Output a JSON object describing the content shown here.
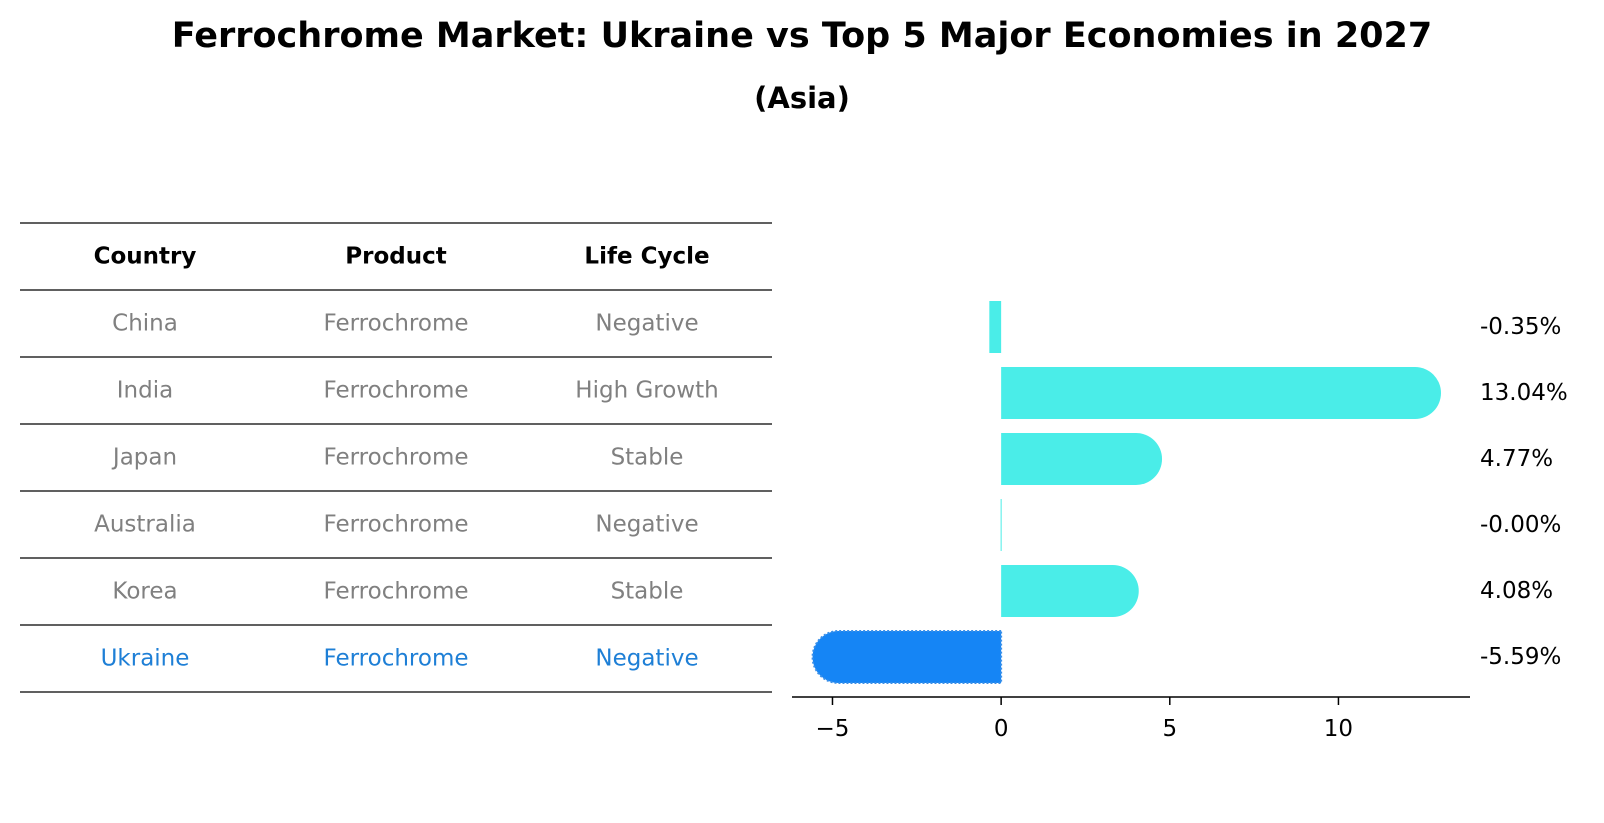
{
  "title": "Ferrochrome Market: Ukraine vs Top 5 Major Economies in 2027",
  "subtitle": "(Asia)",
  "colors": {
    "bar": "#4aede8",
    "highlight": "#1585f5",
    "text_gray": "#808080",
    "text_highlight": "#1e7fd6"
  },
  "table": {
    "headers": [
      "Country",
      "Product",
      "Life Cycle"
    ],
    "rows": [
      {
        "country": "China",
        "product": "Ferrochrome",
        "life_cycle": "Negative",
        "highlight": false
      },
      {
        "country": "India",
        "product": "Ferrochrome",
        "life_cycle": "High Growth",
        "highlight": false
      },
      {
        "country": "Japan",
        "product": "Ferrochrome",
        "life_cycle": "Stable",
        "highlight": false
      },
      {
        "country": "Australia",
        "product": "Ferrochrome",
        "life_cycle": "Negative",
        "highlight": false
      },
      {
        "country": "Korea",
        "product": "Ferrochrome",
        "life_cycle": "Stable",
        "highlight": false
      },
      {
        "country": "Ukraine",
        "product": "Ferrochrome",
        "life_cycle": "Negative",
        "highlight": true
      }
    ]
  },
  "chart_data": {
    "type": "bar",
    "orientation": "horizontal",
    "categories": [
      "China",
      "India",
      "Japan",
      "Australia",
      "Korea",
      "Ukraine"
    ],
    "values": [
      -0.35,
      13.04,
      4.77,
      -0.0,
      4.08,
      -5.59
    ],
    "value_labels": [
      "-0.35%",
      "13.04%",
      "4.77%",
      "-0.00%",
      "4.08%",
      "-5.59%"
    ],
    "highlight_category": "Ukraine",
    "xlim": [
      -6.2,
      13.9
    ],
    "xticks": [
      -5,
      0,
      5,
      10
    ],
    "xtick_labels": [
      "−5",
      "0",
      "5",
      "10"
    ],
    "title": "Ferrochrome Market: Ukraine vs Top 5 Major Economies in 2027",
    "subtitle": "(Asia)",
    "xlabel": "",
    "ylabel": "",
    "grid": false
  }
}
